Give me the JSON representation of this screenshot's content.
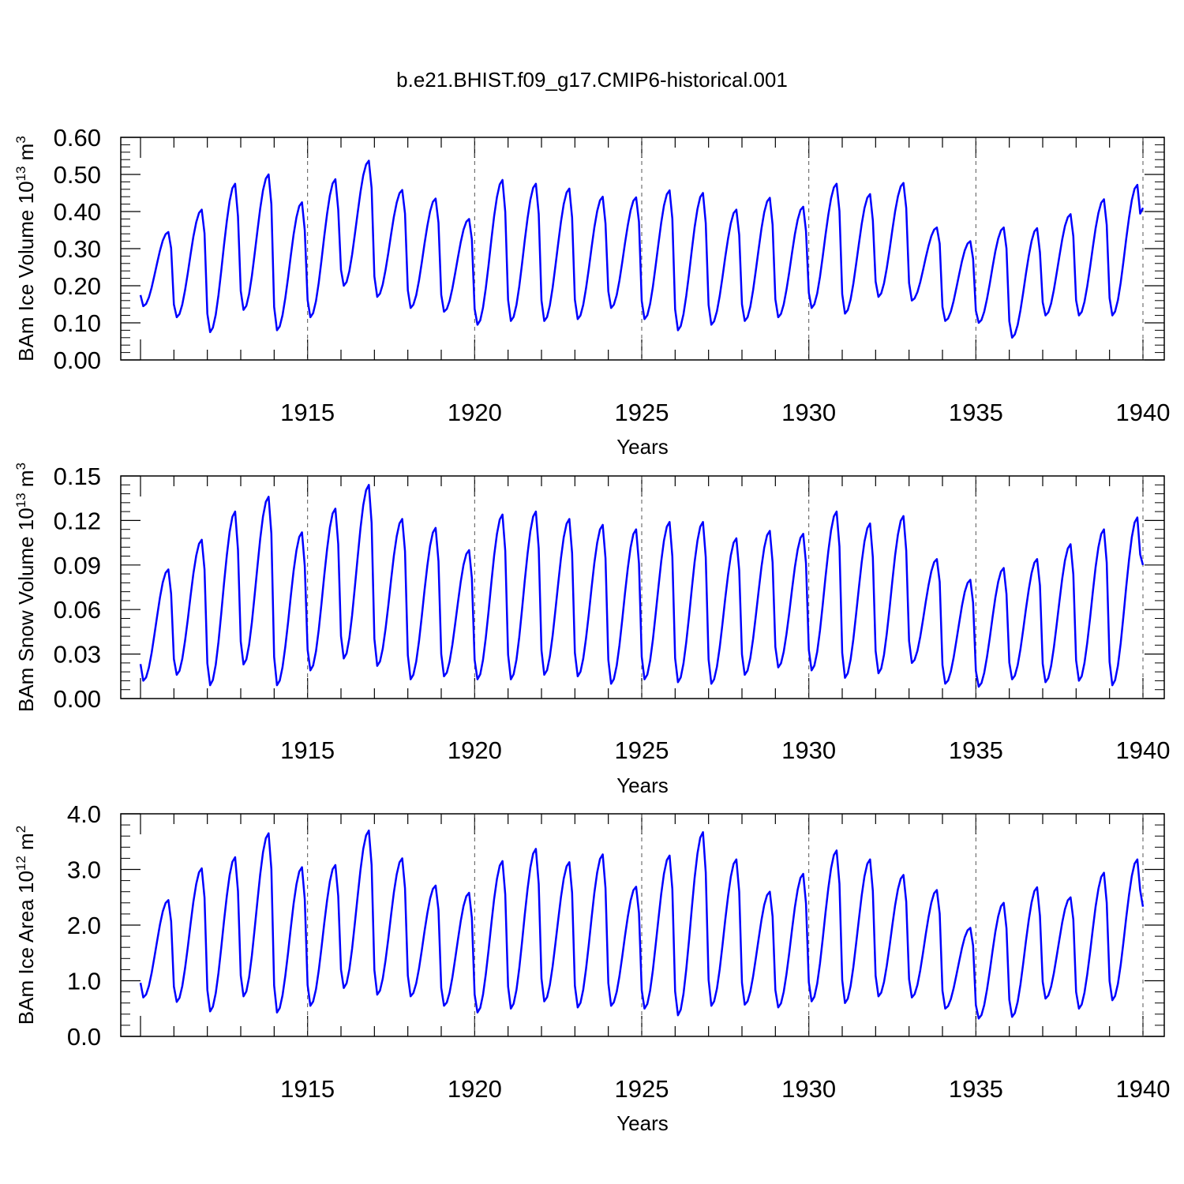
{
  "title": "b.e21.BHIST.f09_g17.CMIP6-historical.001",
  "chart_data": [
    {
      "type": "line",
      "ylabel": "BAm Ice Volume 10",
      "ylabel_exp": "13",
      "ylabel_unit": "m",
      "ylabel_unit_exp": "3",
      "xlabel": "Years",
      "xlim": [
        1910.0,
        1940.0
      ],
      "ylim": [
        0.0,
        0.6
      ],
      "yticks": [
        "0.00",
        "0.10",
        "0.20",
        "0.30",
        "0.40",
        "0.50",
        "0.60"
      ],
      "ytick_values": [
        0.0,
        0.1,
        0.2,
        0.3,
        0.4,
        0.5,
        0.6
      ],
      "xticks": [
        "1915",
        "1920",
        "1925",
        "1930",
        "1935",
        "1940"
      ],
      "xtick_values": [
        1915,
        1920,
        1925,
        1930,
        1935,
        1940
      ],
      "grid": "dashed vertical lines at labeled years",
      "series": [
        {
          "color": "#0000ff",
          "annual_max": [
            0.345,
            0.405,
            0.475,
            0.5,
            0.425,
            0.487,
            0.537,
            0.458,
            0.435,
            0.38,
            0.485,
            0.475,
            0.462,
            0.44,
            0.438,
            0.457,
            0.45,
            0.405,
            0.437,
            0.413,
            0.475,
            0.447,
            0.477,
            0.357,
            0.32,
            0.357,
            0.355,
            0.393,
            0.433,
            0.472
          ],
          "annual_min": [
            0.145,
            0.115,
            0.075,
            0.135,
            0.08,
            0.115,
            0.2,
            0.17,
            0.14,
            0.13,
            0.095,
            0.105,
            0.105,
            0.11,
            0.14,
            0.11,
            0.08,
            0.095,
            0.105,
            0.115,
            0.14,
            0.125,
            0.17,
            0.16,
            0.105,
            0.1,
            0.06,
            0.12,
            0.12,
            0.12
          ],
          "final_value": 0.41
        }
      ]
    },
    {
      "type": "line",
      "ylabel": "BAm Snow Volume 10",
      "ylabel_exp": "13",
      "ylabel_unit": "m",
      "ylabel_unit_exp": "3",
      "xlabel": "Years",
      "xlim": [
        1910.0,
        1940.0
      ],
      "ylim": [
        0.0,
        0.15
      ],
      "yticks": [
        "0.00",
        "0.03",
        "0.06",
        "0.09",
        "0.12",
        "0.15"
      ],
      "ytick_values": [
        0.0,
        0.03,
        0.06,
        0.09,
        0.12,
        0.15
      ],
      "xticks": [
        "1915",
        "1920",
        "1925",
        "1930",
        "1935",
        "1940"
      ],
      "xtick_values": [
        1915,
        1920,
        1925,
        1930,
        1935,
        1940
      ],
      "grid": "dashed vertical lines at labeled years",
      "series": [
        {
          "color": "#0000ff",
          "annual_max": [
            0.087,
            0.107,
            0.126,
            0.136,
            0.112,
            0.128,
            0.144,
            0.121,
            0.115,
            0.1,
            0.124,
            0.126,
            0.121,
            0.117,
            0.114,
            0.119,
            0.119,
            0.108,
            0.113,
            0.111,
            0.126,
            0.118,
            0.123,
            0.094,
            0.08,
            0.088,
            0.094,
            0.104,
            0.114,
            0.122
          ],
          "annual_min": [
            0.012,
            0.016,
            0.009,
            0.023,
            0.009,
            0.019,
            0.027,
            0.022,
            0.013,
            0.015,
            0.013,
            0.013,
            0.016,
            0.015,
            0.01,
            0.013,
            0.011,
            0.01,
            0.016,
            0.021,
            0.019,
            0.014,
            0.017,
            0.024,
            0.01,
            0.008,
            0.013,
            0.011,
            0.012,
            0.009
          ],
          "final_value": 0.09
        }
      ]
    },
    {
      "type": "line",
      "ylabel": "BAm Ice Area 10",
      "ylabel_exp": "12",
      "ylabel_unit": "m",
      "ylabel_unit_exp": "2",
      "xlabel": "Years",
      "xlim": [
        1910.0,
        1940.0
      ],
      "ylim": [
        0.0,
        4.0
      ],
      "yticks": [
        "0.0",
        "1.0",
        "2.0",
        "3.0",
        "4.0"
      ],
      "ytick_values": [
        0.0,
        1.0,
        2.0,
        3.0,
        4.0
      ],
      "xticks": [
        "1915",
        "1920",
        "1925",
        "1930",
        "1935",
        "1940"
      ],
      "xtick_values": [
        1915,
        1920,
        1925,
        1930,
        1935,
        1940
      ],
      "grid": "dashed vertical lines at labeled years",
      "series": [
        {
          "color": "#0000ff",
          "annual_max": [
            2.45,
            3.02,
            3.22,
            3.65,
            3.04,
            3.08,
            3.7,
            3.2,
            2.71,
            2.58,
            3.15,
            3.37,
            3.13,
            3.27,
            2.69,
            3.25,
            3.67,
            3.18,
            2.6,
            2.92,
            3.34,
            3.18,
            2.9,
            2.63,
            1.95,
            2.4,
            2.68,
            2.5,
            2.94,
            3.18
          ],
          "annual_min": [
            0.7,
            0.62,
            0.45,
            0.72,
            0.43,
            0.55,
            0.87,
            0.75,
            0.72,
            0.55,
            0.43,
            0.5,
            0.63,
            0.52,
            0.55,
            0.5,
            0.38,
            0.55,
            0.57,
            0.52,
            0.63,
            0.6,
            0.72,
            0.7,
            0.5,
            0.32,
            0.35,
            0.68,
            0.5,
            0.65
          ],
          "final_value": 2.33
        }
      ]
    }
  ]
}
